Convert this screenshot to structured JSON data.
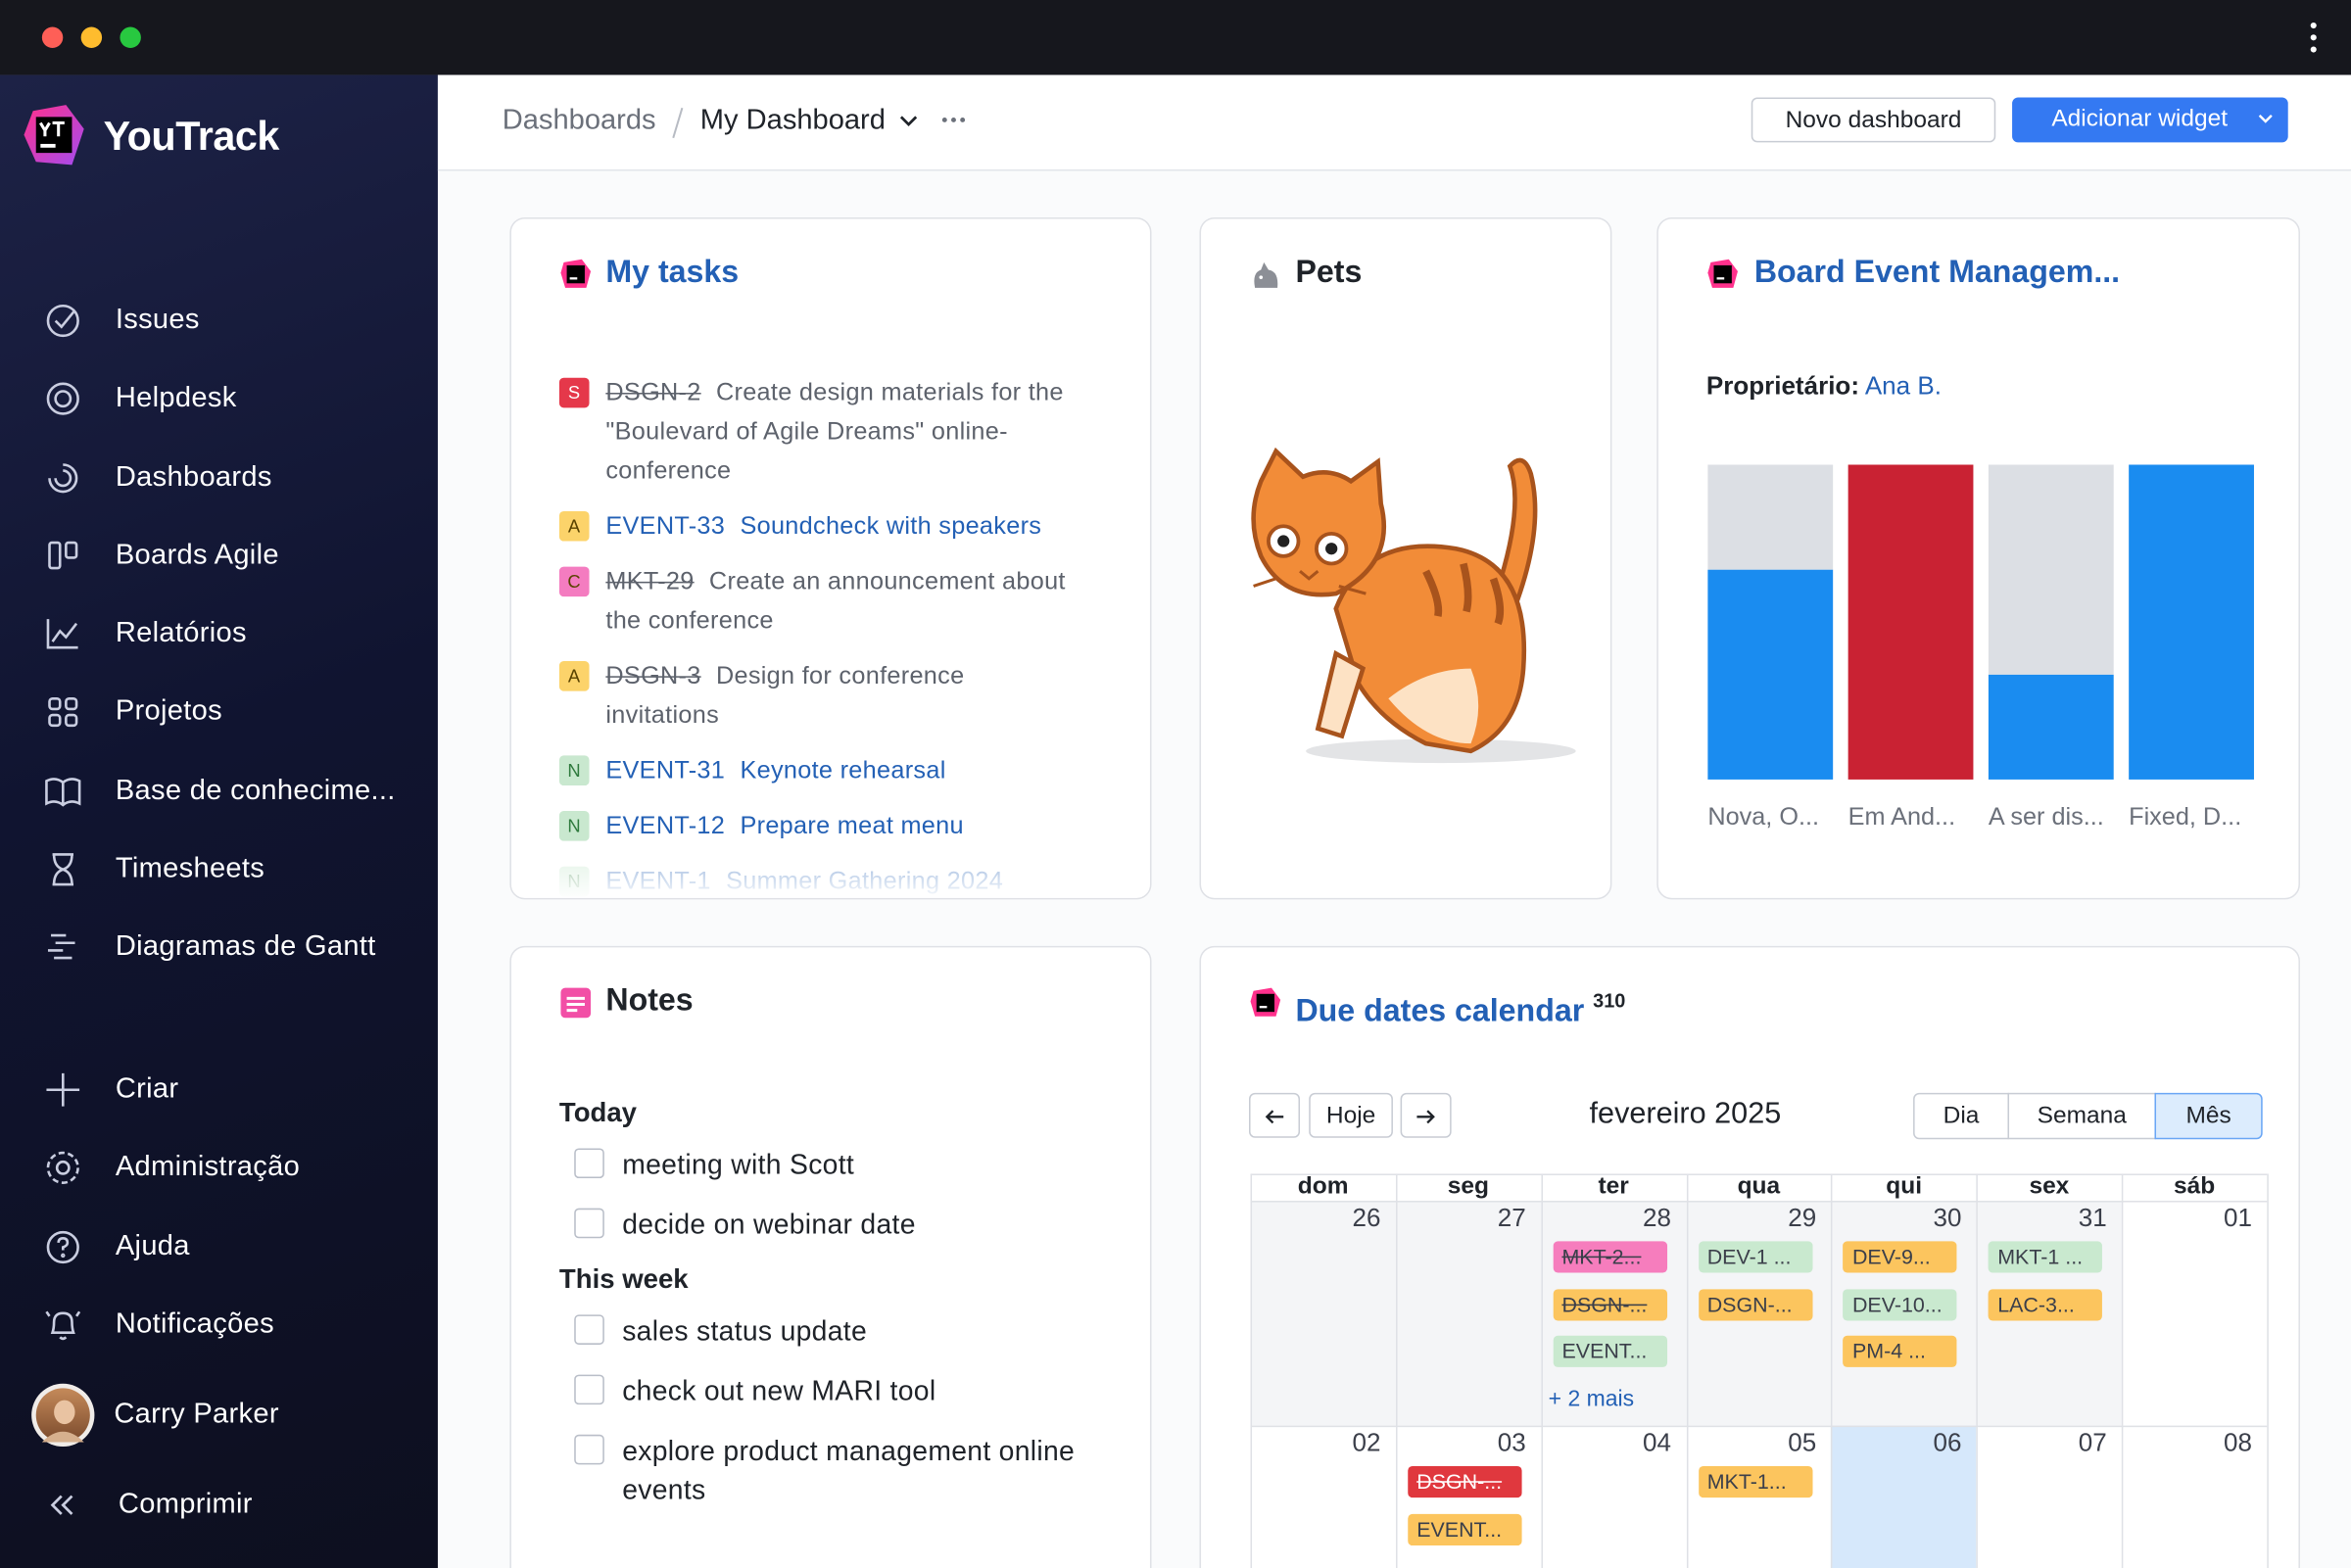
{
  "sidebar": {
    "brand": "YouTrack",
    "nav": [
      "Issues",
      "Helpdesk",
      "Dashboards",
      "Boards Agile",
      "Relatórios",
      "Projetos",
      "Base de conhecime...",
      "Timesheets",
      "Diagramas de Gantt"
    ],
    "actions": [
      "Criar",
      "Administração",
      "Ajuda",
      "Notificações"
    ],
    "user": "Carry Parker",
    "collapse": "Comprimir"
  },
  "header": {
    "breadcrumb": {
      "root": "Dashboards",
      "current": "My Dashboard"
    },
    "buttons": {
      "secondary": "Novo dashboard",
      "primary": "Adicionar widget"
    }
  },
  "my_tasks": {
    "title": "My tasks",
    "items": [
      {
        "priority": "S",
        "priority_color": "#e5384a",
        "id": "DSGN-2",
        "summary": "Create design materials for the \"Boulevard of Agile Dreams\" online-conference",
        "resolved": true
      },
      {
        "priority": "A",
        "priority_color": "#fcd36a",
        "id": "EVENT-33",
        "summary": "Soundcheck with speakers",
        "resolved": false
      },
      {
        "priority": "C",
        "priority_color": "#f47cc0",
        "id": "MKT-29",
        "summary": "Create an announcement about the conference",
        "resolved": true
      },
      {
        "priority": "A",
        "priority_color": "#fcd36a",
        "id": "DSGN-3",
        "summary": "Design for conference invitations",
        "resolved": true
      },
      {
        "priority": "N",
        "priority_color": "#c9e8cf",
        "id": "EVENT-31",
        "summary": "Keynote rehearsal",
        "resolved": false
      },
      {
        "priority": "N",
        "priority_color": "#c9e8cf",
        "id": "EVENT-12",
        "summary": "Prepare meat menu",
        "resolved": false
      },
      {
        "priority": "N",
        "priority_color": "#c9e8cf",
        "id": "EVENT-1",
        "summary": "Summer Gathering 2024",
        "resolved": false
      }
    ]
  },
  "pets": {
    "title": "Pets"
  },
  "board": {
    "title": "Board Event Managem...",
    "owner_label": "Proprietário:",
    "owner": "Ana B.",
    "columns": [
      {
        "label": "Nova, O...",
        "segments": [
          {
            "value": 2,
            "color": "#1a8cf0"
          },
          {
            "value": 1,
            "color": "#dcdfe4"
          }
        ]
      },
      {
        "label": "Em And...",
        "segments": [
          {
            "value": 1,
            "color": "#c92233"
          }
        ]
      },
      {
        "label": "A ser dis...",
        "segments": [
          {
            "value": 1,
            "color": "#1a8cf0"
          },
          {
            "value": 2,
            "color": "#dcdfe4"
          }
        ]
      },
      {
        "label": "Fixed, D...",
        "segments": [
          {
            "value": 1,
            "color": "#1a8cf0"
          }
        ]
      }
    ]
  },
  "notes": {
    "title": "Notes",
    "sections": [
      {
        "heading": "Today",
        "items": [
          "meeting with Scott",
          "decide on webinar date"
        ]
      },
      {
        "heading": "This week",
        "items": [
          "sales status update",
          "check out new MARI tool",
          "explore product management online events"
        ]
      }
    ]
  },
  "calendar": {
    "title": "Due dates calendar",
    "count": 310,
    "today_button": "Hoje",
    "month": "fevereiro 2025",
    "views": [
      "Dia",
      "Semana",
      "Mês"
    ],
    "active_view": 2,
    "weekdays": [
      "dom",
      "seg",
      "ter",
      "qua",
      "qui",
      "sex",
      "sáb"
    ],
    "weeks": [
      {
        "days": [
          {
            "day": "26",
            "other_month": true,
            "events": []
          },
          {
            "day": "27",
            "other_month": true,
            "events": []
          },
          {
            "day": "28",
            "other_month": true,
            "events": [
              {
                "label": "MKT-2...",
                "color": "#f67dbd",
                "resolved": true
              },
              {
                "label": "DSGN-...",
                "color": "#fcc55e",
                "resolved": true
              },
              {
                "label": "EVENT...",
                "color": "#c9e9cf",
                "resolved": false
              }
            ],
            "more": "+ 2 mais"
          },
          {
            "day": "29",
            "other_month": true,
            "events": [
              {
                "label": "DEV-1 ...",
                "color": "#c9e9cf",
                "resolved": false
              },
              {
                "label": "DSGN-...",
                "color": "#fcc55e",
                "resolved": false
              }
            ]
          },
          {
            "day": "30",
            "other_month": true,
            "events": [
              {
                "label": "DEV-9...",
                "color": "#fcc55e",
                "resolved": false
              },
              {
                "label": "DEV-10...",
                "color": "#c9e9cf",
                "resolved": false
              },
              {
                "label": "PM-4 ...",
                "color": "#fcc55e",
                "resolved": false
              }
            ]
          },
          {
            "day": "31",
            "other_month": true,
            "events": [
              {
                "label": "MKT-1 ...",
                "color": "#c9e9cf",
                "resolved": false
              },
              {
                "label": "LAC-3...",
                "color": "#fcc55e",
                "resolved": false
              }
            ]
          },
          {
            "day": "01",
            "other_month": false,
            "events": []
          }
        ]
      },
      {
        "days": [
          {
            "day": "02",
            "other_month": false,
            "events": []
          },
          {
            "day": "03",
            "other_month": false,
            "events": [
              {
                "label": "DSGN-...",
                "color": "#e0383e",
                "resolved": true
              },
              {
                "label": "EVENT...",
                "color": "#fcc55e",
                "resolved": false
              }
            ]
          },
          {
            "day": "04",
            "other_month": false,
            "events": []
          },
          {
            "day": "05",
            "other_month": false,
            "events": [
              {
                "label": "MKT-1...",
                "color": "#fcc55e",
                "resolved": false
              }
            ]
          },
          {
            "day": "06",
            "other_month": false,
            "today": true,
            "events": []
          },
          {
            "day": "07",
            "other_month": false,
            "events": []
          },
          {
            "day": "08",
            "other_month": false,
            "events": []
          }
        ]
      }
    ]
  }
}
